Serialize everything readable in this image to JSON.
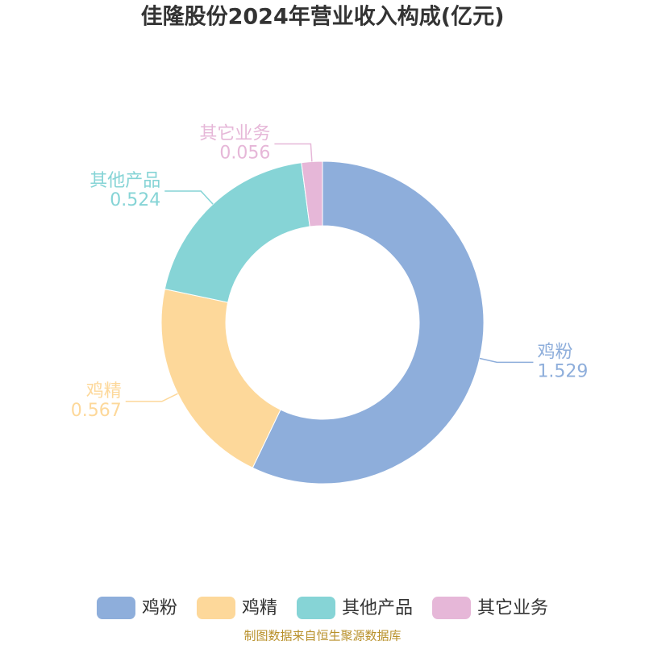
{
  "chart_data": {
    "type": "donut",
    "title": "佳隆股份2024年营业收入构成(亿元)",
    "categories": [
      "鸡粉",
      "鸡精",
      "其他产品",
      "其它业务"
    ],
    "values": [
      1.529,
      0.567,
      0.524,
      0.056
    ],
    "colors": [
      "#8eaedb",
      "#fdd89a",
      "#86d4d6",
      "#e6b7d8"
    ],
    "legend": "bottom",
    "source": "制图数据来自恒生聚源数据库"
  }
}
